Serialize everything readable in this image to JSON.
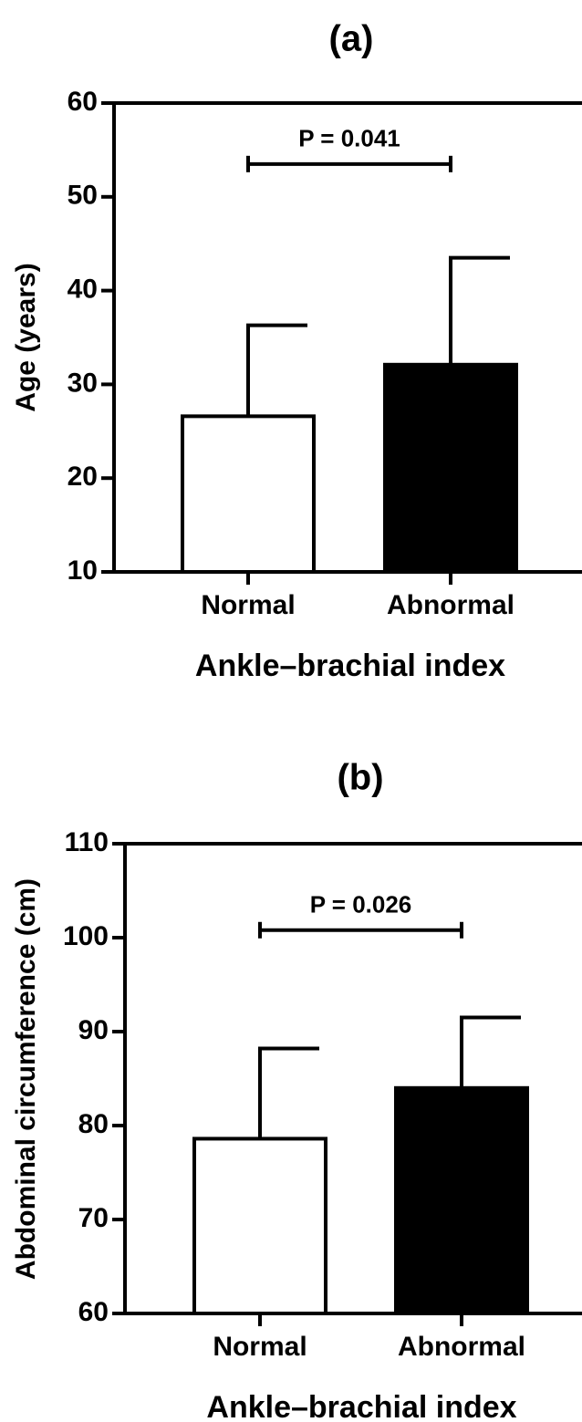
{
  "chart_data": [
    {
      "type": "bar",
      "title": "(a)",
      "x_label": "Ankle–brachial index",
      "y_label": "Age (years)",
      "categories": [
        "Normal",
        "Abnormal"
      ],
      "values": [
        26.6,
        32.1
      ],
      "errors": [
        9.7,
        11.4
      ],
      "colors": [
        "#ffffff",
        "#000000"
      ],
      "ylim": [
        10,
        60
      ],
      "yticks": [
        10,
        20,
        30,
        40,
        50,
        60
      ],
      "annotation": {
        "text": "P = 0.041",
        "y": 53.5
      }
    },
    {
      "type": "bar",
      "title": "(b)",
      "x_label": "Ankle–brachial index",
      "y_label": "Abdominal circumference (cm)",
      "categories": [
        "Normal",
        "Abnormal"
      ],
      "values": [
        78.6,
        84.0
      ],
      "errors": [
        9.6,
        7.5
      ],
      "colors": [
        "#ffffff",
        "#000000"
      ],
      "ylim": [
        60,
        110
      ],
      "yticks": [
        60,
        70,
        80,
        90,
        100,
        110
      ],
      "annotation": {
        "text": "P = 0.026",
        "y": 100.8
      }
    }
  ]
}
